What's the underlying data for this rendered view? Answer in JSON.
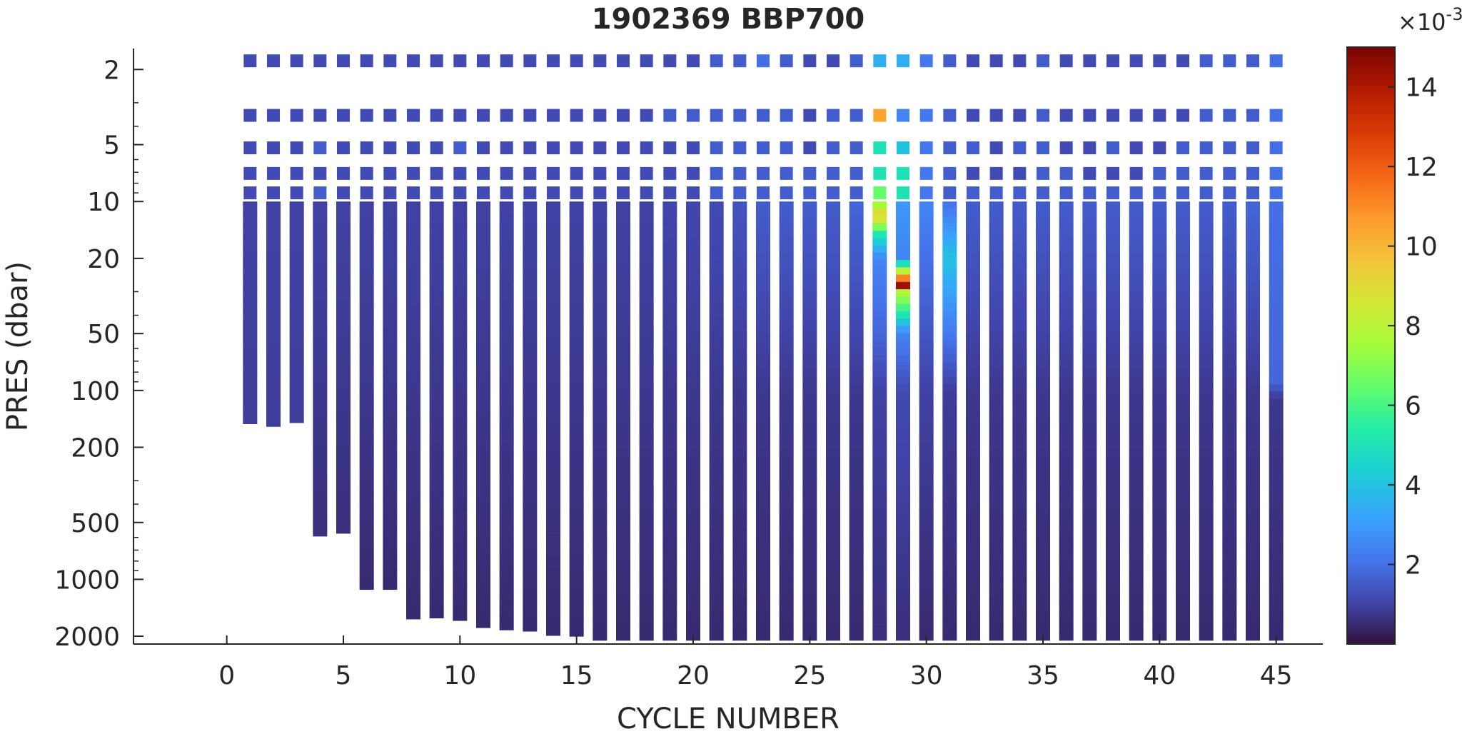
{
  "chart_data": {
    "type": "heatmap",
    "title": "1902369 BBP700",
    "xlabel": "CYCLE NUMBER",
    "ylabel": "PRES (dbar)",
    "x_axis": {
      "range": [
        -4,
        47
      ],
      "ticks": [
        0,
        5,
        10,
        15,
        20,
        25,
        30,
        35,
        40,
        45
      ]
    },
    "y_axis": {
      "scale": "log",
      "reversed": true,
      "range": [
        1.55,
        2200
      ],
      "tick_values": [
        2,
        5,
        10,
        20,
        50,
        100,
        200,
        500,
        1000,
        2000
      ],
      "tick_labels": [
        "2",
        "5",
        "10",
        "20",
        "50",
        "100",
        "200",
        "500",
        "1000",
        "2000"
      ]
    },
    "colorbar": {
      "colormap": "turbo",
      "range": [
        0,
        0.015
      ],
      "ticks": [
        2,
        4,
        6,
        8,
        10,
        12,
        14
      ],
      "multiplier_label": "×10",
      "multiplier_exponent": "-3"
    },
    "surface_levels_dbar": [
      1.8,
      3.5,
      5.2,
      7.1,
      9.0
    ],
    "profiles": [
      {
        "cycle": 1,
        "max_pres": 150,
        "surface": [
          1.2,
          1.2,
          1.2,
          1.2,
          1.2
        ],
        "profile": [
          [
            10,
            1.0
          ],
          [
            150,
            0.9
          ]
        ]
      },
      {
        "cycle": 2,
        "max_pres": 155,
        "surface": [
          1.2,
          1.2,
          1.2,
          1.2,
          1.2
        ],
        "profile": [
          [
            10,
            1.0
          ],
          [
            155,
            0.9
          ]
        ]
      },
      {
        "cycle": 3,
        "max_pres": 148,
        "surface": [
          1.2,
          1.2,
          1.2,
          1.2,
          1.2
        ],
        "profile": [
          [
            10,
            1.0
          ],
          [
            148,
            0.9
          ]
        ]
      },
      {
        "cycle": 4,
        "max_pres": 590,
        "surface": [
          1.2,
          1.2,
          1.6,
          1.2,
          1.6
        ],
        "profile": [
          [
            10,
            1.0
          ],
          [
            100,
            0.8
          ],
          [
            590,
            0.6
          ]
        ]
      },
      {
        "cycle": 5,
        "max_pres": 570,
        "surface": [
          1.2,
          1.2,
          1.2,
          1.2,
          1.2
        ],
        "profile": [
          [
            10,
            1.0
          ],
          [
            100,
            0.8
          ],
          [
            570,
            0.6
          ]
        ]
      },
      {
        "cycle": 6,
        "max_pres": 1130,
        "surface": [
          1.2,
          1.2,
          1.2,
          1.2,
          1.2
        ],
        "profile": [
          [
            10,
            1.0
          ],
          [
            100,
            0.8
          ],
          [
            1130,
            0.5
          ]
        ]
      },
      {
        "cycle": 7,
        "max_pres": 1130,
        "surface": [
          1.2,
          1.2,
          1.2,
          1.2,
          1.2
        ],
        "profile": [
          [
            10,
            1.0
          ],
          [
            100,
            0.8
          ],
          [
            1130,
            0.5
          ]
        ]
      },
      {
        "cycle": 8,
        "max_pres": 1620,
        "surface": [
          1.2,
          1.2,
          1.2,
          1.2,
          1.2
        ],
        "profile": [
          [
            10,
            1.0
          ],
          [
            100,
            0.8
          ],
          [
            1620,
            0.5
          ]
        ]
      },
      {
        "cycle": 9,
        "max_pres": 1600,
        "surface": [
          1.2,
          1.2,
          1.2,
          1.2,
          1.2
        ],
        "profile": [
          [
            10,
            1.0
          ],
          [
            100,
            0.8
          ],
          [
            1600,
            0.5
          ]
        ]
      },
      {
        "cycle": 10,
        "max_pres": 1650,
        "surface": [
          1.2,
          1.2,
          1.6,
          1.2,
          1.2
        ],
        "profile": [
          [
            10,
            1.0
          ],
          [
            100,
            0.8
          ],
          [
            1650,
            0.5
          ]
        ]
      },
      {
        "cycle": 11,
        "max_pres": 1800,
        "surface": [
          1.2,
          1.2,
          1.2,
          1.2,
          1.2
        ],
        "profile": [
          [
            10,
            1.0
          ],
          [
            100,
            0.8
          ],
          [
            1800,
            0.5
          ]
        ]
      },
      {
        "cycle": 12,
        "max_pres": 1850,
        "surface": [
          1.2,
          1.2,
          1.2,
          1.2,
          1.2
        ],
        "profile": [
          [
            10,
            1.0
          ],
          [
            100,
            0.8
          ],
          [
            1850,
            0.5
          ]
        ]
      },
      {
        "cycle": 13,
        "max_pres": 1880,
        "surface": [
          1.2,
          1.2,
          1.2,
          1.2,
          1.2
        ],
        "profile": [
          [
            10,
            1.0
          ],
          [
            100,
            0.8
          ],
          [
            1880,
            0.5
          ]
        ]
      },
      {
        "cycle": 14,
        "max_pres": 1980,
        "surface": [
          1.2,
          1.2,
          1.2,
          1.2,
          1.2
        ],
        "profile": [
          [
            10,
            1.0
          ],
          [
            100,
            0.8
          ],
          [
            1980,
            0.5
          ]
        ]
      },
      {
        "cycle": 15,
        "max_pres": 2000,
        "surface": [
          1.2,
          1.2,
          1.2,
          1.2,
          1.2
        ],
        "profile": [
          [
            10,
            1.0
          ],
          [
            100,
            0.8
          ],
          [
            2000,
            0.5
          ]
        ]
      },
      {
        "cycle": 16,
        "max_pres": 2100,
        "surface": [
          1.2,
          1.2,
          1.2,
          1.2,
          1.2
        ],
        "profile": [
          [
            10,
            1.0
          ],
          [
            100,
            0.8
          ],
          [
            2100,
            0.5
          ]
        ]
      },
      {
        "cycle": 17,
        "max_pres": 2100,
        "surface": [
          1.2,
          1.2,
          1.2,
          1.2,
          1.2
        ],
        "profile": [
          [
            10,
            1.0
          ],
          [
            100,
            0.8
          ],
          [
            2100,
            0.5
          ]
        ]
      },
      {
        "cycle": 18,
        "max_pres": 2100,
        "surface": [
          1.2,
          1.2,
          1.2,
          1.2,
          1.2
        ],
        "profile": [
          [
            10,
            1.0
          ],
          [
            100,
            0.8
          ],
          [
            2100,
            0.5
          ]
        ]
      },
      {
        "cycle": 19,
        "max_pres": 2100,
        "surface": [
          1.2,
          1.6,
          1.2,
          1.2,
          1.2
        ],
        "profile": [
          [
            10,
            1.1
          ],
          [
            100,
            0.8
          ],
          [
            2100,
            0.5
          ]
        ]
      },
      {
        "cycle": 20,
        "max_pres": 2100,
        "surface": [
          1.2,
          1.6,
          1.2,
          1.2,
          1.2
        ],
        "profile": [
          [
            10,
            1.1
          ],
          [
            100,
            0.8
          ],
          [
            2100,
            0.5
          ]
        ]
      },
      {
        "cycle": 21,
        "max_pres": 2100,
        "surface": [
          1.6,
          1.6,
          1.6,
          1.6,
          1.6
        ],
        "profile": [
          [
            10,
            1.2
          ],
          [
            100,
            0.8
          ],
          [
            2100,
            0.5
          ]
        ]
      },
      {
        "cycle": 22,
        "max_pres": 2100,
        "surface": [
          1.6,
          1.6,
          1.6,
          1.6,
          1.6
        ],
        "profile": [
          [
            10,
            1.4
          ],
          [
            100,
            0.8
          ],
          [
            2100,
            0.5
          ]
        ]
      },
      {
        "cycle": 23,
        "max_pres": 2100,
        "surface": [
          2.0,
          1.6,
          1.6,
          1.6,
          1.6
        ],
        "profile": [
          [
            10,
            1.6
          ],
          [
            100,
            0.8
          ],
          [
            2100,
            0.5
          ]
        ]
      },
      {
        "cycle": 24,
        "max_pres": 2100,
        "surface": [
          1.6,
          1.6,
          1.6,
          1.6,
          1.6
        ],
        "profile": [
          [
            10,
            1.6
          ],
          [
            100,
            0.8
          ],
          [
            2100,
            0.5
          ]
        ]
      },
      {
        "cycle": 25,
        "max_pres": 2100,
        "surface": [
          1.2,
          1.2,
          1.2,
          1.6,
          1.6
        ],
        "profile": [
          [
            10,
            1.6
          ],
          [
            100,
            0.8
          ],
          [
            2100,
            0.5
          ]
        ]
      },
      {
        "cycle": 26,
        "max_pres": 2100,
        "surface": [
          1.2,
          1.6,
          1.6,
          1.6,
          1.6
        ],
        "profile": [
          [
            10,
            1.6
          ],
          [
            100,
            0.8
          ],
          [
            2100,
            0.5
          ]
        ]
      },
      {
        "cycle": 27,
        "max_pres": 2100,
        "surface": [
          1.6,
          1.6,
          1.6,
          1.6,
          1.6
        ],
        "profile": [
          [
            10,
            1.8
          ],
          [
            100,
            0.8
          ],
          [
            2100,
            0.5
          ]
        ]
      },
      {
        "cycle": 28,
        "max_pres": 2100,
        "surface": [
          3.5,
          10.5,
          5.0,
          5.0,
          6.5
        ],
        "profile": [
          [
            10,
            7.0
          ],
          [
            12,
            9.5
          ],
          [
            15,
            5.0
          ],
          [
            20,
            2.5
          ],
          [
            50,
            1.8
          ],
          [
            100,
            1.0
          ],
          [
            2100,
            0.6
          ]
        ]
      },
      {
        "cycle": 29,
        "max_pres": 2100,
        "surface": [
          3.5,
          2.5,
          4.0,
          5.0,
          5.0
        ],
        "profile": [
          [
            10,
            3.0
          ],
          [
            20,
            2.5
          ],
          [
            28,
            14.5
          ],
          [
            30,
            8.0
          ],
          [
            40,
            5.0
          ],
          [
            50,
            2.5
          ],
          [
            100,
            1.2
          ],
          [
            2100,
            0.6
          ]
        ]
      },
      {
        "cycle": 30,
        "max_pres": 2100,
        "surface": [
          2.2,
          2.2,
          2.2,
          2.2,
          2.2
        ],
        "profile": [
          [
            10,
            2.5
          ],
          [
            100,
            1.0
          ],
          [
            2100,
            0.5
          ]
        ]
      },
      {
        "cycle": 31,
        "max_pres": 2100,
        "surface": [
          1.6,
          1.6,
          1.6,
          1.6,
          1.6
        ],
        "profile": [
          [
            10,
            2.0
          ],
          [
            20,
            4.0
          ],
          [
            100,
            0.9
          ],
          [
            2100,
            0.5
          ]
        ]
      },
      {
        "cycle": 32,
        "max_pres": 2100,
        "surface": [
          1.2,
          1.2,
          1.6,
          1.2,
          1.6
        ],
        "profile": [
          [
            10,
            1.6
          ],
          [
            100,
            0.8
          ],
          [
            2100,
            0.5
          ]
        ]
      },
      {
        "cycle": 33,
        "max_pres": 2100,
        "surface": [
          1.2,
          1.2,
          1.2,
          1.2,
          1.6
        ],
        "profile": [
          [
            10,
            1.6
          ],
          [
            100,
            0.8
          ],
          [
            2100,
            0.5
          ]
        ]
      },
      {
        "cycle": 34,
        "max_pres": 2100,
        "surface": [
          1.2,
          1.2,
          1.6,
          1.2,
          1.6
        ],
        "profile": [
          [
            10,
            1.6
          ],
          [
            100,
            0.8
          ],
          [
            2100,
            0.5
          ]
        ]
      },
      {
        "cycle": 35,
        "max_pres": 2100,
        "surface": [
          1.6,
          1.6,
          1.6,
          1.6,
          1.6
        ],
        "profile": [
          [
            10,
            1.6
          ],
          [
            100,
            0.8
          ],
          [
            2100,
            0.5
          ]
        ]
      },
      {
        "cycle": 36,
        "max_pres": 2100,
        "surface": [
          1.2,
          1.2,
          1.2,
          1.6,
          1.6
        ],
        "profile": [
          [
            10,
            1.6
          ],
          [
            100,
            0.8
          ],
          [
            2100,
            0.5
          ]
        ]
      },
      {
        "cycle": 37,
        "max_pres": 2100,
        "surface": [
          1.2,
          1.2,
          1.2,
          1.2,
          1.6
        ],
        "profile": [
          [
            10,
            1.6
          ],
          [
            100,
            0.8
          ],
          [
            2100,
            0.5
          ]
        ]
      },
      {
        "cycle": 38,
        "max_pres": 2100,
        "surface": [
          1.2,
          1.2,
          1.6,
          1.2,
          1.6
        ],
        "profile": [
          [
            10,
            1.6
          ],
          [
            100,
            0.8
          ],
          [
            2100,
            0.5
          ]
        ]
      },
      {
        "cycle": 39,
        "max_pres": 2100,
        "surface": [
          1.2,
          1.2,
          1.2,
          1.2,
          1.6
        ],
        "profile": [
          [
            10,
            1.6
          ],
          [
            100,
            0.8
          ],
          [
            2100,
            0.5
          ]
        ]
      },
      {
        "cycle": 40,
        "max_pres": 2100,
        "surface": [
          1.2,
          1.2,
          1.2,
          1.6,
          1.6
        ],
        "profile": [
          [
            10,
            1.6
          ],
          [
            100,
            0.8
          ],
          [
            2100,
            0.5
          ]
        ]
      },
      {
        "cycle": 41,
        "max_pres": 2100,
        "surface": [
          1.2,
          1.2,
          1.6,
          1.6,
          1.6
        ],
        "profile": [
          [
            10,
            1.6
          ],
          [
            100,
            0.8
          ],
          [
            2100,
            0.5
          ]
        ]
      },
      {
        "cycle": 42,
        "max_pres": 2100,
        "surface": [
          1.6,
          1.6,
          1.6,
          1.6,
          1.6
        ],
        "profile": [
          [
            10,
            1.6
          ],
          [
            100,
            0.8
          ],
          [
            2100,
            0.5
          ]
        ]
      },
      {
        "cycle": 43,
        "max_pres": 2100,
        "surface": [
          1.6,
          1.6,
          1.6,
          1.6,
          1.6
        ],
        "profile": [
          [
            10,
            1.6
          ],
          [
            100,
            0.8
          ],
          [
            2100,
            0.5
          ]
        ]
      },
      {
        "cycle": 44,
        "max_pres": 2100,
        "surface": [
          1.6,
          1.6,
          1.6,
          1.6,
          1.6
        ],
        "profile": [
          [
            10,
            1.8
          ],
          [
            100,
            0.8
          ],
          [
            2100,
            0.5
          ]
        ]
      },
      {
        "cycle": 45,
        "max_pres": 2100,
        "surface": [
          2.0,
          2.0,
          2.0,
          2.0,
          2.0
        ],
        "profile": [
          [
            10,
            2.0
          ],
          [
            90,
            1.8
          ],
          [
            110,
            0.8
          ],
          [
            2100,
            0.5
          ]
        ]
      }
    ]
  }
}
